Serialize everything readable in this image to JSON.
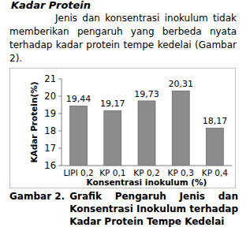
{
  "heading": "Kadar Protein",
  "paragraph": "Jenis dan konsentrasi inokulum tidak memberikan pengaruh yang berbeda nyata terhadap kadar protein tempe kedelai (Gambar 2).",
  "chart_data": {
    "type": "bar",
    "categories": [
      "LIPI 0,2",
      "KP 0,1",
      "KP 0,2",
      "KP 0,3",
      "KP 0,4"
    ],
    "values": [
      19.44,
      19.17,
      19.73,
      20.31,
      18.17
    ],
    "value_labels": [
      "19,44",
      "19,17",
      "19,73",
      "20,31",
      "18,17"
    ],
    "data_labels": true,
    "color": "#8c8c8c",
    "ylim": [
      16,
      21
    ],
    "yticks": [
      16,
      17,
      18,
      19,
      20,
      21
    ],
    "grid": false,
    "x_label": "Konsentrasi inokulum (%)",
    "y_label": "KAdar Protein(%)"
  },
  "caption": {
    "label": "Gambar 2.",
    "text": "Grafik Pengaruh Jenis dan Konsentrasi Inokulum terhadap Kadar Protein Tempe Kedelai"
  }
}
